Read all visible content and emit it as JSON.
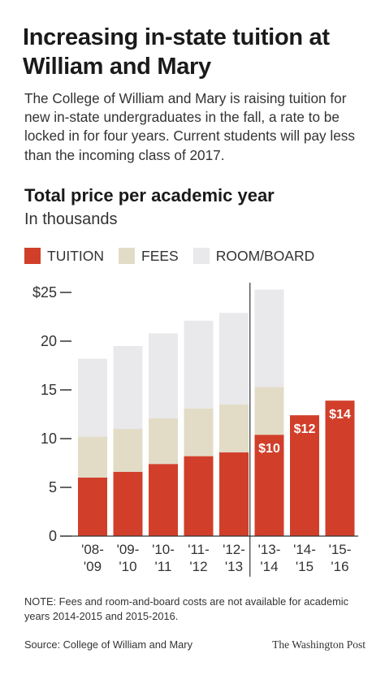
{
  "headline": "Increasing in-state tuition at William and Mary",
  "dek": "The College of William and Mary is raising tuition for new in-state undergraduates in the fall, a rate to be locked in for four years. Current students will pay less than the incoming class of 2017.",
  "note": "NOTE: Fees and room-and-board costs are not available for academic years 2014-2015 and 2015-2016.",
  "source": "Source: College of William and Mary",
  "credit": "The Washington Post",
  "colors": {
    "tuition": "#d13f2a",
    "fees": "#e2dcc7",
    "room_board": "#e9e9ec",
    "divider": "#333333"
  },
  "chart_data": {
    "type": "bar",
    "stacked": true,
    "title": "Total price per academic year",
    "subtitle": "In thousands",
    "categories": [
      [
        "'08-",
        "'09"
      ],
      [
        "'09-",
        "'10"
      ],
      [
        "'10-",
        "'11"
      ],
      [
        "'11-",
        "'12"
      ],
      [
        "'12-",
        "'13"
      ],
      [
        "'13-",
        "'14"
      ],
      [
        "'14-",
        "'15"
      ],
      [
        "'15-",
        "'16"
      ]
    ],
    "series": [
      {
        "name": "TUITION",
        "color": "#d13f2a",
        "values": [
          6.0,
          6.6,
          7.4,
          8.2,
          8.6,
          10.4,
          12.4,
          13.9
        ]
      },
      {
        "name": "FEES",
        "color": "#e2dcc7",
        "values": [
          4.2,
          4.4,
          4.7,
          4.9,
          4.9,
          4.9,
          null,
          null
        ]
      },
      {
        "name": "ROOM/BOARD",
        "color": "#e9e9ec",
        "values": [
          8.0,
          8.5,
          8.7,
          9.0,
          9.4,
          10.0,
          null,
          null
        ]
      }
    ],
    "data_labels": [
      {
        "category_index": 5,
        "text": "$10"
      },
      {
        "category_index": 6,
        "text": "$12"
      },
      {
        "category_index": 7,
        "text": "$14"
      }
    ],
    "y_ticks": [
      {
        "value": 0,
        "label": "0"
      },
      {
        "value": 5,
        "label": "5"
      },
      {
        "value": 10,
        "label": "10"
      },
      {
        "value": 15,
        "label": "15"
      },
      {
        "value": 20,
        "label": "20"
      },
      {
        "value": 25,
        "label": "$25"
      }
    ],
    "ylim": [
      0,
      25
    ],
    "divider_after_index": 4,
    "legend_position": "top-left"
  }
}
